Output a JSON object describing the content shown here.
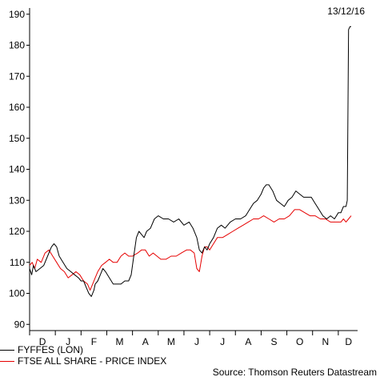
{
  "date_label": "13/12/16",
  "source": "Source: Thomson Reuters Datastream",
  "chart_data": {
    "type": "line",
    "ylim": [
      88,
      192
    ],
    "yticks": [
      90,
      100,
      110,
      120,
      130,
      140,
      150,
      160,
      170,
      180,
      190
    ],
    "xlim": [
      0,
      12.75
    ],
    "month_ticks": [
      0,
      1,
      2,
      3,
      4,
      5,
      6,
      7,
      8,
      9,
      10,
      11,
      12
    ],
    "months": [
      {
        "label": "D",
        "pos": 0.5
      },
      {
        "label": "J",
        "pos": 1.5
      },
      {
        "label": "F",
        "pos": 2.5
      },
      {
        "label": "M",
        "pos": 3.5
      },
      {
        "label": "A",
        "pos": 4.5
      },
      {
        "label": "M",
        "pos": 5.5
      },
      {
        "label": "J",
        "pos": 6.5
      },
      {
        "label": "J",
        "pos": 7.5
      },
      {
        "label": "A",
        "pos": 8.5
      },
      {
        "label": "S",
        "pos": 9.5
      },
      {
        "label": "O",
        "pos": 10.5
      },
      {
        "label": "N",
        "pos": 11.5
      },
      {
        "label": "D",
        "pos": 12.4
      }
    ],
    "series": [
      {
        "name": "FYFFES (LON)",
        "color": "#000000",
        "x": [
          0,
          0.08,
          0.15,
          0.25,
          0.4,
          0.55,
          0.7,
          0.85,
          0.95,
          1.05,
          1.15,
          1.3,
          1.45,
          1.6,
          1.75,
          1.9,
          2.0,
          2.1,
          2.2,
          2.3,
          2.4,
          2.5,
          2.55,
          2.65,
          2.75,
          2.85,
          2.95,
          3.1,
          3.25,
          3.4,
          3.55,
          3.7,
          3.85,
          3.95,
          4.05,
          4.15,
          4.25,
          4.35,
          4.45,
          4.55,
          4.7,
          4.85,
          5.0,
          5.2,
          5.4,
          5.6,
          5.8,
          6.0,
          6.2,
          6.35,
          6.5,
          6.6,
          6.7,
          6.8,
          6.9,
          7.0,
          7.15,
          7.3,
          7.45,
          7.6,
          7.8,
          8.0,
          8.2,
          8.4,
          8.55,
          8.7,
          8.85,
          9.0,
          9.1,
          9.2,
          9.3,
          9.45,
          9.6,
          9.75,
          9.9,
          10.05,
          10.2,
          10.35,
          10.5,
          10.65,
          10.8,
          10.95,
          11.1,
          11.25,
          11.4,
          11.55,
          11.7,
          11.85,
          12.0,
          12.1,
          12.2,
          12.3,
          12.35,
          12.4,
          12.45,
          12.5
        ],
        "values": [
          108,
          106,
          109,
          107,
          108,
          109,
          112,
          115,
          116,
          115,
          112,
          110,
          108,
          107,
          106,
          105,
          104,
          104,
          102,
          100,
          99,
          101,
          103,
          104,
          106,
          108,
          107,
          105,
          103,
          103,
          103,
          104,
          104,
          106,
          112,
          118,
          120,
          119,
          118,
          120,
          121,
          124,
          125,
          124,
          124,
          123,
          124,
          122,
          123,
          121,
          118,
          114,
          113,
          115,
          114,
          116,
          118,
          121,
          122,
          121,
          123,
          124,
          124,
          125,
          127,
          129,
          130,
          132,
          134,
          135,
          135,
          133,
          130,
          129,
          128,
          130,
          131,
          133,
          132,
          131,
          131,
          131,
          129,
          127,
          125,
          124,
          125,
          124,
          126,
          126,
          128,
          128,
          130,
          185,
          186,
          186
        ]
      },
      {
        "name": "FTSE ALL SHARE - PRICE INDEX",
        "color": "#e60000",
        "x": [
          0,
          0.1,
          0.2,
          0.3,
          0.45,
          0.6,
          0.75,
          0.9,
          1.05,
          1.2,
          1.35,
          1.5,
          1.65,
          1.8,
          1.95,
          2.1,
          2.25,
          2.35,
          2.45,
          2.55,
          2.65,
          2.8,
          2.95,
          3.1,
          3.25,
          3.4,
          3.55,
          3.7,
          3.85,
          4.0,
          4.2,
          4.35,
          4.5,
          4.65,
          4.8,
          4.95,
          5.1,
          5.3,
          5.5,
          5.7,
          5.9,
          6.1,
          6.25,
          6.4,
          6.5,
          6.6,
          6.7,
          6.8,
          6.9,
          7.0,
          7.15,
          7.3,
          7.5,
          7.7,
          7.9,
          8.1,
          8.3,
          8.5,
          8.7,
          8.9,
          9.1,
          9.3,
          9.5,
          9.7,
          9.9,
          10.1,
          10.3,
          10.5,
          10.7,
          10.9,
          11.1,
          11.3,
          11.5,
          11.7,
          11.9,
          12.1,
          12.2,
          12.3,
          12.4,
          12.5
        ],
        "values": [
          109,
          110,
          108,
          111,
          110,
          113,
          114,
          112,
          110,
          108,
          107,
          105,
          106,
          107,
          106,
          104,
          103,
          101,
          103,
          105,
          107,
          109,
          110,
          111,
          110,
          110,
          112,
          113,
          112,
          112,
          113,
          114,
          114,
          112,
          113,
          112,
          111,
          111,
          112,
          112,
          113,
          114,
          114,
          113,
          108,
          107,
          112,
          115,
          115,
          114,
          116,
          118,
          118,
          119,
          120,
          121,
          122,
          123,
          124,
          124,
          125,
          124,
          123,
          124,
          124,
          125,
          127,
          127,
          126,
          125,
          125,
          124,
          124,
          123,
          123,
          123,
          124,
          123,
          124,
          125
        ]
      }
    ]
  }
}
